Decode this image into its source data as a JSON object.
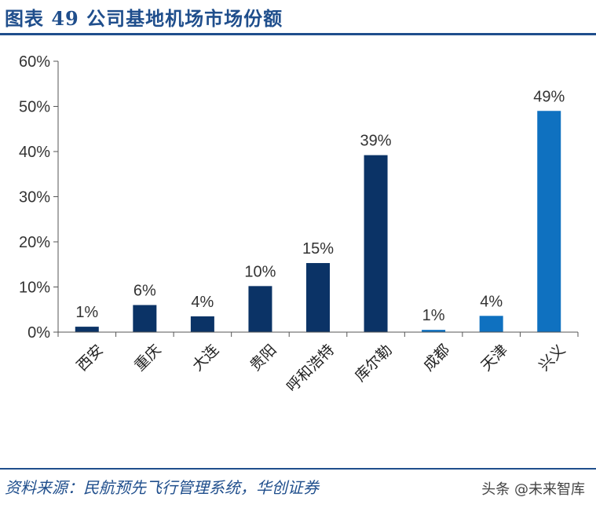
{
  "header": {
    "title": "图表 49   公司基地机场市场份额"
  },
  "footer": {
    "source": "资料来源：民航预先飞行管理系统，华创证券",
    "watermark": "头条 @未来智库"
  },
  "colors": {
    "brand": "#1f4e8c",
    "bar_dark": "#0b3366",
    "bar_light": "#0f71c0"
  },
  "chart_data": {
    "type": "bar",
    "title": "",
    "xlabel": "",
    "ylabel": "",
    "categories": [
      "西安",
      "重庆",
      "大连",
      "贵阳",
      "呼和浩特",
      "库尔勒",
      "成都",
      "天津",
      "兴义"
    ],
    "values": [
      1,
      6,
      4,
      10,
      15,
      39,
      1,
      4,
      49
    ],
    "plotted_values": [
      1.2,
      6.0,
      3.5,
      10.2,
      15.3,
      39.2,
      0.5,
      3.6,
      49.0
    ],
    "data_labels": [
      "1%",
      "6%",
      "4%",
      "10%",
      "15%",
      "39%",
      "1%",
      "4%",
      "49%"
    ],
    "bar_colors": [
      "#0b3366",
      "#0b3366",
      "#0b3366",
      "#0b3366",
      "#0b3366",
      "#0b3366",
      "#0f71c0",
      "#0f71c0",
      "#0f71c0"
    ],
    "ylim": [
      0,
      60
    ],
    "yticks": [
      0,
      10,
      20,
      30,
      40,
      50,
      60
    ],
    "ytick_labels": [
      "0%",
      "10%",
      "20%",
      "30%",
      "40%",
      "50%",
      "60%"
    ],
    "grid": false,
    "legend": "none"
  }
}
